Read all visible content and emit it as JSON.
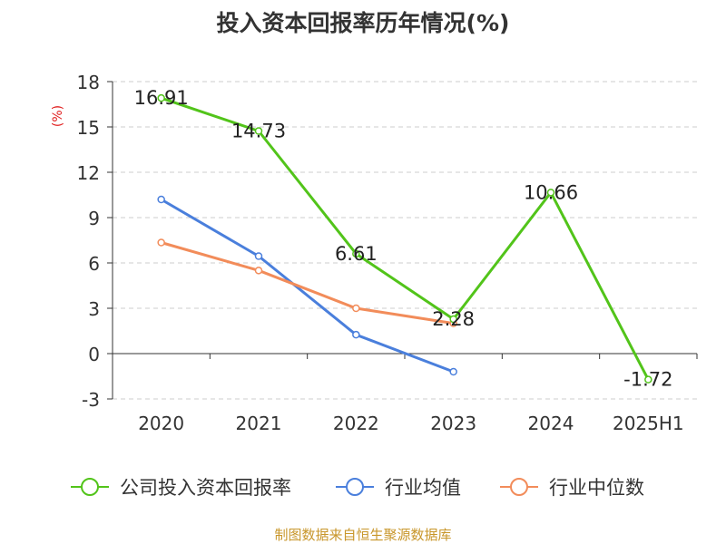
{
  "chart_data": {
    "type": "line",
    "title": "投入资本回报率历年情况(%)",
    "ylabel": "(%)",
    "categories": [
      "2020",
      "2021",
      "2022",
      "2023",
      "2024",
      "2025H1"
    ],
    "ylim": [
      -3,
      18
    ],
    "yticks": [
      "-3",
      "0",
      "3",
      "6",
      "9",
      "12",
      "15",
      "18"
    ],
    "grid": true,
    "legend_position": "bottom",
    "series": [
      {
        "name": "公司投入资本回报率",
        "color": "#52c41a",
        "values": [
          16.91,
          14.73,
          6.61,
          2.28,
          10.66,
          -1.72
        ],
        "labels": [
          "16.91",
          "14.73",
          "6.61",
          "2.28",
          "10.66",
          "-1.72"
        ]
      },
      {
        "name": "行业均值",
        "color": "#4a7fdc",
        "values": [
          10.2,
          6.45,
          1.25,
          -1.2,
          null,
          null
        ]
      },
      {
        "name": "行业中位数",
        "color": "#f28c5a",
        "values": [
          7.35,
          5.5,
          3.0,
          2.0,
          null,
          null
        ]
      }
    ]
  },
  "footer": {
    "source": "制图数据来自恒生聚源数据库"
  }
}
